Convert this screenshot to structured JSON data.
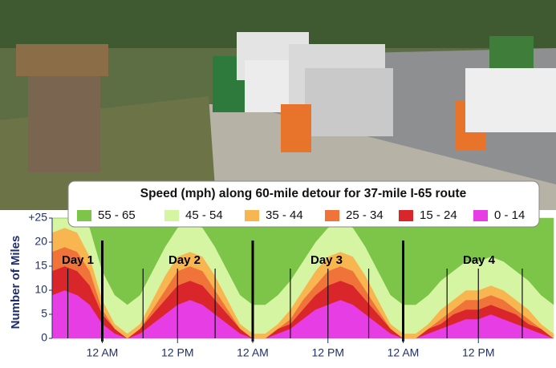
{
  "chart_data": {
    "type": "stacked_area",
    "title": "Speed (mph) along 60-mile detour for 37-mile I-65 route",
    "y_label": "Number of Miles",
    "x": [
      -8,
      -6,
      -4,
      -2,
      0,
      2,
      4,
      6,
      8,
      10,
      12,
      14,
      16,
      18,
      20,
      22,
      24,
      26,
      28,
      30,
      32,
      34,
      36,
      38,
      40,
      42,
      44,
      46,
      48,
      50,
      52,
      54,
      56,
      58,
      60,
      62,
      64,
      66,
      68,
      70,
      72
    ],
    "xlim": [
      -8,
      72
    ],
    "xticks": [
      {
        "value": 0,
        "label": "12 AM"
      },
      {
        "value": 12,
        "label": "12 PM"
      },
      {
        "value": 24,
        "label": "12 AM"
      },
      {
        "value": 36,
        "label": "12 PM"
      },
      {
        "value": 48,
        "label": "12 AM"
      },
      {
        "value": 60,
        "label": "12 PM"
      }
    ],
    "ylim": [
      0,
      25
    ],
    "yticks": [
      {
        "value": 25,
        "label": "+25"
      },
      20,
      15,
      10,
      5,
      0
    ],
    "day_lines": [
      0,
      24,
      48
    ],
    "marker_lines": [
      -5.5,
      6.5,
      12,
      18,
      30,
      36,
      42.5,
      55,
      60,
      67
    ],
    "annotations": [
      "Day 1",
      "Day 2",
      "Day 3",
      "Day 4"
    ],
    "series": [
      {
        "name": "55 - 65",
        "color": "#7cc548",
        "values": [
          0,
          0,
          0,
          2,
          11,
          16,
          18,
          16,
          11,
          6,
          2,
          1,
          2,
          6,
          11,
          16,
          18,
          18,
          16,
          13,
          9,
          5,
          2,
          1,
          2,
          6,
          11,
          16,
          18,
          18,
          16,
          13,
          11,
          9,
          9,
          8,
          9,
          11,
          13,
          16,
          18
        ]
      },
      {
        "name": "45 - 54",
        "color": "#d6f5a3",
        "values": [
          3,
          2,
          3,
          6,
          6,
          6,
          6,
          6,
          6,
          6,
          6,
          6,
          6,
          6,
          6,
          6,
          6,
          6,
          6,
          6,
          6,
          6,
          6,
          6,
          6,
          6,
          6,
          6,
          6,
          6,
          6,
          6,
          6,
          6,
          6,
          6,
          6,
          6,
          6,
          6,
          6
        ]
      },
      {
        "name": "35 - 44",
        "color": "#f8b650",
        "values": [
          4,
          4,
          4,
          3,
          2,
          1,
          1,
          1,
          2,
          3,
          3,
          3,
          3,
          3,
          2,
          1,
          1,
          1,
          1,
          2,
          2,
          3,
          3,
          3,
          3,
          3,
          2,
          1,
          1,
          1,
          1,
          2,
          2,
          2,
          2,
          2,
          2,
          2,
          2,
          1,
          1
        ]
      },
      {
        "name": "25 - 34",
        "color": "#f0733a",
        "values": [
          4,
          4,
          4,
          3,
          1,
          0,
          0,
          0,
          1,
          2,
          3,
          3,
          3,
          2,
          1,
          0,
          0,
          0,
          0,
          1,
          2,
          2,
          3,
          3,
          3,
          2,
          1,
          0,
          0,
          0,
          0,
          1,
          1,
          2,
          2,
          2,
          2,
          1,
          1,
          0,
          0
        ]
      },
      {
        "name": "15 - 24",
        "color": "#d8262b",
        "values": [
          5,
          5,
          5,
          4,
          2,
          1,
          0,
          1,
          2,
          3,
          4,
          4,
          4,
          3,
          2,
          1,
          0,
          0,
          1,
          1,
          2,
          3,
          4,
          4,
          4,
          3,
          2,
          1,
          0,
          0,
          1,
          1,
          2,
          2,
          2,
          2,
          2,
          2,
          1,
          1,
          0
        ]
      },
      {
        "name": "0 - 14",
        "color": "#e63de4",
        "values": [
          9,
          10,
          9,
          7,
          3,
          1,
          0,
          1,
          3,
          5,
          7,
          8,
          7,
          5,
          3,
          1,
          0,
          0,
          1,
          2,
          4,
          6,
          7,
          8,
          7,
          5,
          3,
          1,
          0,
          0,
          1,
          2,
          3,
          4,
          4,
          5,
          4,
          3,
          2,
          1,
          0
        ]
      }
    ]
  }
}
